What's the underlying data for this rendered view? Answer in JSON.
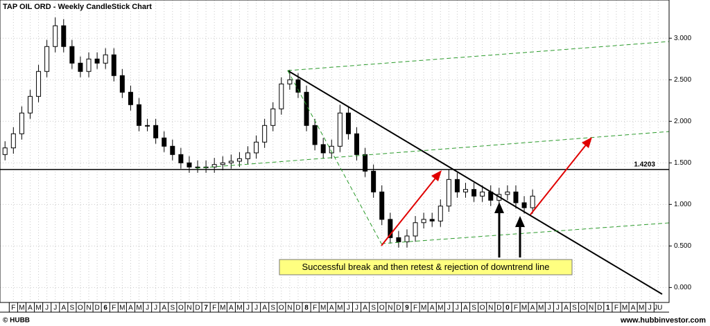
{
  "chart_data": {
    "type": "candlestick",
    "title": "TAP OIL ORD - Weekly CandleStick Chart",
    "x": [
      0,
      1,
      2,
      3,
      4,
      5,
      6,
      7,
      8,
      9,
      10,
      11,
      12,
      13,
      14,
      15,
      16,
      17,
      18,
      19,
      20,
      21,
      22,
      23,
      24,
      25,
      26,
      27,
      28,
      29,
      30,
      31,
      32,
      33,
      34,
      35,
      36,
      37,
      38,
      39,
      40,
      41,
      42,
      43,
      44,
      45,
      46,
      47,
      48,
      49,
      50,
      51,
      52,
      53,
      54,
      55,
      56,
      57,
      58,
      59,
      60,
      61,
      62,
      63
    ],
    "open": [
      1.6,
      1.68,
      1.85,
      2.1,
      2.3,
      2.6,
      2.9,
      3.15,
      2.9,
      2.7,
      2.6,
      2.75,
      2.7,
      2.8,
      2.55,
      2.35,
      2.2,
      1.95,
      1.95,
      1.8,
      1.7,
      1.6,
      1.5,
      1.45,
      1.45,
      1.45,
      1.48,
      1.5,
      1.52,
      1.55,
      1.62,
      1.75,
      1.95,
      2.15,
      2.45,
      2.5,
      2.35,
      1.95,
      1.72,
      1.62,
      1.7,
      2.1,
      1.85,
      1.6,
      1.4,
      1.15,
      0.82,
      0.6,
      0.55,
      0.62,
      0.78,
      0.82,
      0.8,
      0.98,
      1.3,
      1.15,
      1.18,
      1.1,
      1.15,
      1.05,
      1.12,
      1.15,
      1.02,
      0.96
    ],
    "high": [
      1.76,
      1.93,
      2.18,
      2.38,
      2.68,
      2.98,
      3.25,
      3.23,
      2.98,
      2.78,
      2.83,
      2.83,
      2.88,
      2.88,
      2.63,
      2.43,
      2.28,
      2.03,
      2.03,
      1.88,
      1.78,
      1.68,
      1.58,
      1.53,
      1.53,
      1.56,
      1.58,
      1.6,
      1.63,
      1.7,
      1.83,
      2.03,
      2.23,
      2.53,
      2.62,
      2.58,
      2.43,
      2.03,
      1.8,
      1.78,
      2.2,
      2.18,
      1.93,
      1.68,
      1.48,
      1.23,
      0.9,
      0.68,
      0.7,
      0.86,
      0.9,
      0.9,
      1.06,
      1.42,
      1.38,
      1.26,
      1.26,
      1.23,
      1.23,
      1.2,
      1.23,
      1.23,
      1.1,
      1.18
    ],
    "low": [
      1.53,
      1.61,
      1.78,
      2.03,
      2.23,
      2.53,
      2.83,
      2.83,
      2.63,
      2.53,
      2.53,
      2.63,
      2.63,
      2.48,
      2.28,
      2.13,
      1.88,
      1.88,
      1.73,
      1.63,
      1.53,
      1.43,
      1.38,
      1.38,
      1.38,
      1.38,
      1.41,
      1.43,
      1.45,
      1.48,
      1.55,
      1.68,
      1.88,
      2.08,
      2.38,
      2.28,
      1.88,
      1.65,
      1.55,
      1.55,
      1.63,
      1.78,
      1.53,
      1.33,
      1.08,
      0.75,
      0.53,
      0.48,
      0.48,
      0.55,
      0.71,
      0.73,
      0.73,
      0.91,
      1.08,
      1.08,
      1.03,
      1.03,
      0.98,
      0.98,
      1.05,
      0.95,
      0.89,
      0.89
    ],
    "close": [
      1.68,
      1.85,
      2.1,
      2.3,
      2.6,
      2.9,
      3.15,
      2.9,
      2.7,
      2.6,
      2.75,
      2.7,
      2.8,
      2.55,
      2.35,
      2.2,
      1.95,
      1.95,
      1.8,
      1.7,
      1.6,
      1.5,
      1.45,
      1.45,
      1.45,
      1.48,
      1.5,
      1.52,
      1.55,
      1.62,
      1.75,
      1.95,
      2.15,
      2.45,
      2.5,
      2.35,
      1.95,
      1.72,
      1.62,
      1.7,
      2.1,
      1.85,
      1.6,
      1.4,
      1.15,
      0.82,
      0.6,
      0.55,
      0.62,
      0.78,
      0.82,
      0.8,
      0.98,
      1.3,
      1.15,
      1.18,
      1.1,
      1.15,
      1.05,
      1.12,
      1.15,
      1.02,
      0.96,
      1.1
    ],
    "xlim": [
      -0.6,
      79.3
    ],
    "ylim": [
      -0.18,
      3.46
    ],
    "yticks": [
      {
        "value": 0,
        "label": "0.000"
      },
      {
        "value": 0.5,
        "label": "0.500"
      },
      {
        "value": 1,
        "label": "1.000"
      },
      {
        "value": 1.5,
        "label": "1.500"
      },
      {
        "value": 2,
        "label": "2.000"
      },
      {
        "value": 2.5,
        "label": "2.500"
      },
      {
        "value": 3,
        "label": "3.000"
      }
    ],
    "xticks": [
      {
        "value": 1,
        "label": "F"
      },
      {
        "value": 2,
        "label": "M"
      },
      {
        "value": 3,
        "label": "A"
      },
      {
        "value": 4,
        "label": "M"
      },
      {
        "value": 5,
        "label": "J"
      },
      {
        "value": 6,
        "label": "J"
      },
      {
        "value": 7,
        "label": "A"
      },
      {
        "value": 8,
        "label": "S"
      },
      {
        "value": 9,
        "label": "O"
      },
      {
        "value": 10,
        "label": "N"
      },
      {
        "value": 11,
        "label": "D"
      },
      {
        "value": 12,
        "label": "6"
      },
      {
        "value": 13,
        "label": "F"
      },
      {
        "value": 14,
        "label": "M"
      },
      {
        "value": 15,
        "label": "A"
      },
      {
        "value": 16,
        "label": "M"
      },
      {
        "value": 17,
        "label": "J"
      },
      {
        "value": 18,
        "label": "J"
      },
      {
        "value": 19,
        "label": "A"
      },
      {
        "value": 20,
        "label": "S"
      },
      {
        "value": 21,
        "label": "O"
      },
      {
        "value": 22,
        "label": "N"
      },
      {
        "value": 23,
        "label": "D"
      },
      {
        "value": 24,
        "label": "7"
      },
      {
        "value": 25,
        "label": "F"
      },
      {
        "value": 26,
        "label": "M"
      },
      {
        "value": 27,
        "label": "A"
      },
      {
        "value": 28,
        "label": "M"
      },
      {
        "value": 29,
        "label": "J"
      },
      {
        "value": 30,
        "label": "J"
      },
      {
        "value": 31,
        "label": "A"
      },
      {
        "value": 32,
        "label": "S"
      },
      {
        "value": 33,
        "label": "O"
      },
      {
        "value": 34,
        "label": "N"
      },
      {
        "value": 35,
        "label": "D"
      },
      {
        "value": 36,
        "label": "8"
      },
      {
        "value": 37,
        "label": "F"
      },
      {
        "value": 38,
        "label": "M"
      },
      {
        "value": 39,
        "label": "A"
      },
      {
        "value": 40,
        "label": "M"
      },
      {
        "value": 41,
        "label": "J"
      },
      {
        "value": 42,
        "label": "J"
      },
      {
        "value": 43,
        "label": "A"
      },
      {
        "value": 44,
        "label": "S"
      },
      {
        "value": 45,
        "label": "O"
      },
      {
        "value": 46,
        "label": "N"
      },
      {
        "value": 47,
        "label": "D"
      },
      {
        "value": 48,
        "label": "9"
      },
      {
        "value": 49,
        "label": "F"
      },
      {
        "value": 50,
        "label": "M"
      },
      {
        "value": 51,
        "label": "A"
      },
      {
        "value": 52,
        "label": "M"
      },
      {
        "value": 53,
        "label": "J"
      },
      {
        "value": 54,
        "label": "J"
      },
      {
        "value": 55,
        "label": "A"
      },
      {
        "value": 56,
        "label": "S"
      },
      {
        "value": 57,
        "label": "O"
      },
      {
        "value": 58,
        "label": "N"
      },
      {
        "value": 59,
        "label": "D"
      },
      {
        "value": 60,
        "label": "0"
      },
      {
        "value": 61,
        "label": "F"
      },
      {
        "value": 62,
        "label": "M"
      },
      {
        "value": 63,
        "label": "A"
      },
      {
        "value": 64,
        "label": "M"
      },
      {
        "value": 65,
        "label": "J"
      },
      {
        "value": 66,
        "label": "J"
      },
      {
        "value": 67,
        "label": "A"
      },
      {
        "value": 68,
        "label": "S"
      },
      {
        "value": 69,
        "label": "O"
      },
      {
        "value": 70,
        "label": "N"
      },
      {
        "value": 71,
        "label": "D"
      },
      {
        "value": 72,
        "label": "1"
      },
      {
        "value": 73,
        "label": "F"
      },
      {
        "value": 74,
        "label": "M"
      },
      {
        "value": 75,
        "label": "A"
      },
      {
        "value": 76,
        "label": "M"
      },
      {
        "value": 77,
        "label": "J"
      },
      {
        "value": 78,
        "label": "JU"
      }
    ],
    "hline": 1.4203,
    "grid": true,
    "color": "#000000",
    "annotation": "Successful break and then retest & rejection of downtrend line",
    "source": "© HUBB",
    "website": "www.hubbinvestor.com"
  }
}
